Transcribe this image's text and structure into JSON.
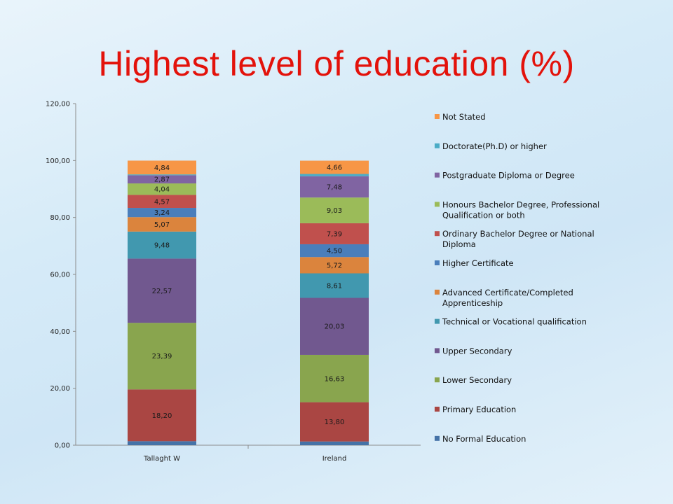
{
  "slide": {
    "title": "Highest level of education (%)"
  },
  "chart_data": {
    "type": "bar",
    "stacked": true,
    "title": "",
    "xlabel": "",
    "ylabel": "",
    "ylim": [
      0,
      120
    ],
    "yticks": [
      "0,00",
      "20,00",
      "40,00",
      "60,00",
      "80,00",
      "100,00",
      "120,00"
    ],
    "categories": [
      "Tallaght W",
      "Ireland"
    ],
    "legend_position": "right",
    "grid": false,
    "series": [
      {
        "name": "No Formal Education",
        "color": "#4572a7",
        "values": [
          1.4,
          1.3
        ],
        "labels": [
          "",
          ""
        ]
      },
      {
        "name": "Primary Education",
        "color": "#aa4643",
        "values": [
          18.2,
          13.8
        ],
        "labels": [
          "18,20",
          "13,80"
        ]
      },
      {
        "name": "Lower Secondary",
        "color": "#89a54e",
        "values": [
          23.39,
          16.63
        ],
        "labels": [
          "23,39",
          "16,63"
        ]
      },
      {
        "name": "Upper Secondary",
        "color": "#71588f",
        "values": [
          22.57,
          20.03
        ],
        "labels": [
          "22,57",
          "20,03"
        ]
      },
      {
        "name": "Technical or Vocational qualification",
        "color": "#4198af",
        "values": [
          9.48,
          8.61
        ],
        "labels": [
          "9,48",
          "8,61"
        ]
      },
      {
        "name": "Advanced Certificate/Completed Apprenticeship",
        "color": "#db843d",
        "values": [
          5.07,
          5.72
        ],
        "labels": [
          "5,07",
          "5,72"
        ]
      },
      {
        "name": "Higher Certificate",
        "color": "#4a7ebb",
        "values": [
          3.24,
          4.5
        ],
        "labels": [
          "3,24",
          "4,50"
        ]
      },
      {
        "name": "Ordinary Bachelor Degree or National Diploma",
        "color": "#c0504d",
        "values": [
          4.57,
          7.39
        ],
        "labels": [
          "4,57",
          "7,39"
        ]
      },
      {
        "name": "Honours Bachelor Degree, Professional Qualification or both",
        "color": "#9bbb59",
        "values": [
          4.04,
          9.03
        ],
        "labels": [
          "4,04",
          "9,03"
        ]
      },
      {
        "name": "Postgraduate Diploma or Degree",
        "color": "#8064a2",
        "values": [
          2.87,
          7.48
        ],
        "labels": [
          "2,87",
          "7,48"
        ]
      },
      {
        "name": "Doctorate(Ph.D) or higher",
        "color": "#4bacc6",
        "values": [
          0.3,
          0.8
        ],
        "labels": [
          "",
          ""
        ]
      },
      {
        "name": "Not Stated",
        "color": "#f79646",
        "values": [
          4.84,
          4.66
        ],
        "labels": [
          "4,84",
          "4,66"
        ]
      }
    ]
  }
}
